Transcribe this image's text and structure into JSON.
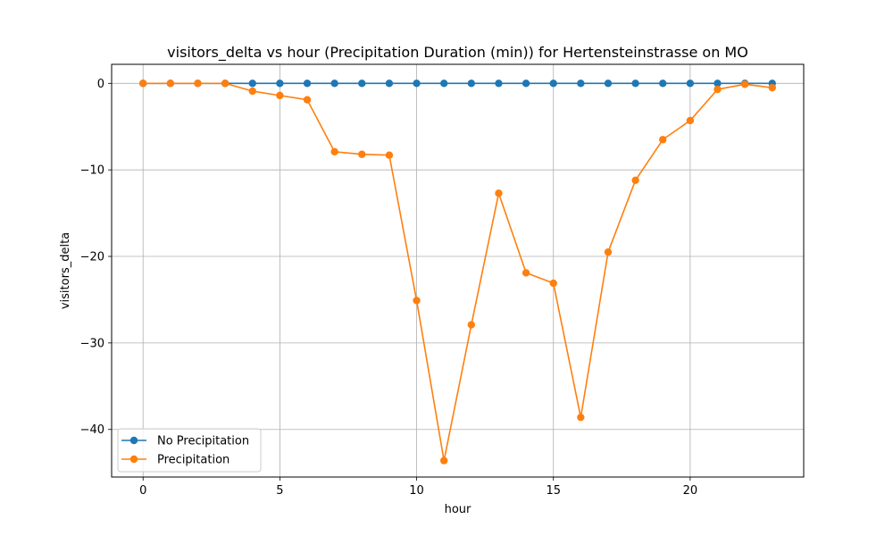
{
  "chart_data": {
    "type": "line",
    "title": "visitors_delta vs hour (Precipitation Duration (min)) for Hertensteinstrasse on MO",
    "xlabel": "hour",
    "ylabel": "visitors_delta",
    "xlim": [
      -1.15,
      24.15
    ],
    "ylim": [
      -45.5,
      2.2
    ],
    "x_ticks": [
      0,
      5,
      10,
      15,
      20
    ],
    "y_ticks": [
      0,
      -10,
      -20,
      -30,
      -40
    ],
    "y_tick_labels": [
      "0",
      "−10",
      "−20",
      "−30",
      "−40"
    ],
    "grid": true,
    "legend_position": "lower-left",
    "x": [
      0,
      1,
      2,
      3,
      4,
      5,
      6,
      7,
      8,
      9,
      10,
      11,
      12,
      13,
      14,
      15,
      16,
      17,
      18,
      19,
      20,
      21,
      22,
      23
    ],
    "series": [
      {
        "name": "No Precipitation",
        "color": "#1f77b4",
        "values": [
          0,
          0,
          0,
          0,
          0,
          0,
          0,
          0,
          0,
          0,
          0,
          0,
          0,
          0,
          0,
          0,
          0,
          0,
          0,
          0,
          0,
          0,
          0,
          0
        ]
      },
      {
        "name": "Precipitation",
        "color": "#ff7f0e",
        "values": [
          0,
          0,
          0,
          0,
          -0.9,
          -1.4,
          -1.9,
          -7.9,
          -8.2,
          -8.3,
          -25.1,
          -43.6,
          -27.9,
          -12.7,
          -21.9,
          -23.1,
          -38.6,
          -19.5,
          -11.2,
          -6.5,
          -4.3,
          -0.7,
          -0.1,
          -0.5
        ]
      }
    ]
  }
}
